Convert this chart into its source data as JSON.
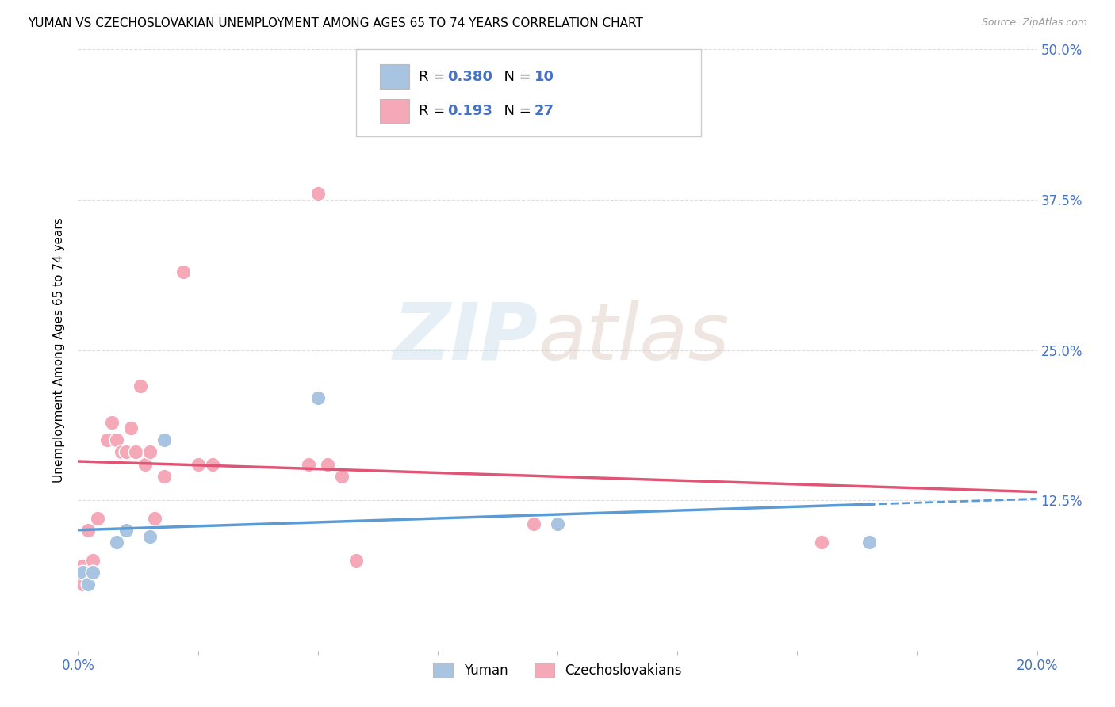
{
  "title": "YUMAN VS CZECHOSLOVAKIAN UNEMPLOYMENT AMONG AGES 65 TO 74 YEARS CORRELATION CHART",
  "source": "Source: ZipAtlas.com",
  "ylabel": "Unemployment Among Ages 65 to 74 years",
  "xlim": [
    0.0,
    0.2
  ],
  "ylim": [
    0.0,
    0.5
  ],
  "xticks": [
    0.0,
    0.025,
    0.05,
    0.075,
    0.1,
    0.125,
    0.15,
    0.175,
    0.2
  ],
  "xticklabels": [
    "0.0%",
    "",
    "",
    "",
    "",
    "",
    "",
    "",
    "20.0%"
  ],
  "yticks": [
    0.0,
    0.125,
    0.25,
    0.375,
    0.5
  ],
  "yticklabels": [
    "",
    "12.5%",
    "25.0%",
    "37.5%",
    "50.0%"
  ],
  "yuman_color": "#a8c4e0",
  "czechoslovakian_color": "#f4a8b8",
  "yuman_R": 0.38,
  "yuman_N": 10,
  "czechoslovakian_R": 0.193,
  "czechoslovakian_N": 27,
  "yuman_x": [
    0.001,
    0.002,
    0.003,
    0.008,
    0.01,
    0.015,
    0.018,
    0.05,
    0.1,
    0.165
  ],
  "yuman_y": [
    0.065,
    0.055,
    0.065,
    0.09,
    0.1,
    0.095,
    0.175,
    0.21,
    0.105,
    0.09
  ],
  "czechoslovakian_x": [
    0.001,
    0.001,
    0.002,
    0.003,
    0.004,
    0.006,
    0.007,
    0.008,
    0.009,
    0.01,
    0.011,
    0.012,
    0.013,
    0.014,
    0.015,
    0.016,
    0.018,
    0.022,
    0.025,
    0.028,
    0.048,
    0.05,
    0.052,
    0.055,
    0.058,
    0.095,
    0.155
  ],
  "czechoslovakian_y": [
    0.07,
    0.055,
    0.1,
    0.075,
    0.11,
    0.175,
    0.19,
    0.175,
    0.165,
    0.165,
    0.185,
    0.165,
    0.22,
    0.155,
    0.165,
    0.11,
    0.145,
    0.315,
    0.155,
    0.155,
    0.155,
    0.38,
    0.155,
    0.145,
    0.075,
    0.105,
    0.09
  ],
  "yuman_line_color": "#5b9bd5",
  "czechoslovakian_line_color": "#e05575",
  "grid_color": "#dddddd",
  "background_color": "#ffffff",
  "right_label_color": "#4472c4",
  "bottom_label_color": "#4472c4"
}
